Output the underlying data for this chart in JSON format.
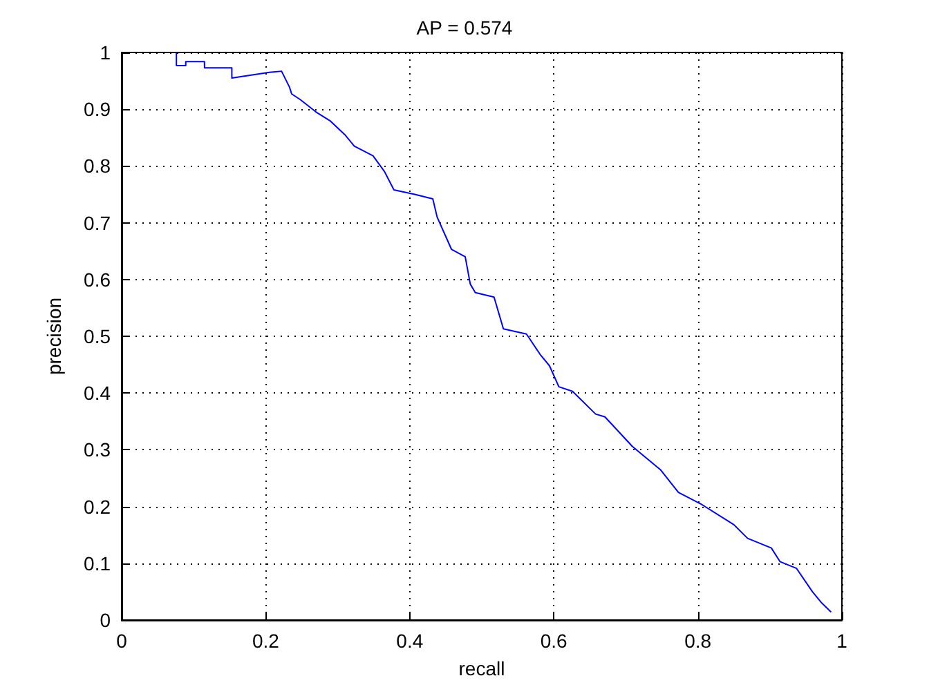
{
  "chart_data": {
    "type": "line",
    "title": "AP = 0.574",
    "xlabel": "recall",
    "ylabel": "precision",
    "xlim": [
      0,
      1
    ],
    "xticks": [
      0,
      0.2,
      0.4,
      0.6,
      0.8,
      1
    ],
    "ylim": [
      0,
      1
    ],
    "yticks": [
      0,
      0.1,
      0.2,
      0.3,
      0.4,
      0.5,
      0.6,
      0.7,
      0.8,
      0.9,
      1
    ],
    "grid": true,
    "marker": "none",
    "line_style": "solid",
    "series": [
      {
        "color": "#0000ff",
        "x": [
          0.076,
          0.076,
          0.089,
          0.089,
          0.115,
          0.115,
          0.153,
          0.153,
          0.205,
          0.222,
          0.233,
          0.236,
          0.248,
          0.27,
          0.29,
          0.31,
          0.323,
          0.349,
          0.365,
          0.378,
          0.407,
          0.432,
          0.438,
          0.458,
          0.477,
          0.484,
          0.491,
          0.517,
          0.53,
          0.562,
          0.581,
          0.594,
          0.607,
          0.626,
          0.658,
          0.671,
          0.709,
          0.748,
          0.773,
          0.805,
          0.85,
          0.869,
          0.902,
          0.914,
          0.937,
          0.959,
          0.972,
          0.985
        ],
        "values": [
          1,
          0.977,
          0.977,
          0.984,
          0.984,
          0.973,
          0.973,
          0.955,
          0.965,
          0.967,
          0.939,
          0.927,
          0.917,
          0.895,
          0.879,
          0.855,
          0.835,
          0.818,
          0.79,
          0.758,
          0.75,
          0.742,
          0.71,
          0.653,
          0.64,
          0.592,
          0.577,
          0.569,
          0.513,
          0.504,
          0.468,
          0.448,
          0.411,
          0.403,
          0.363,
          0.358,
          0.306,
          0.265,
          0.225,
          0.204,
          0.168,
          0.144,
          0.127,
          0.103,
          0.091,
          0.05,
          0.03,
          0.014
        ]
      }
    ]
  }
}
